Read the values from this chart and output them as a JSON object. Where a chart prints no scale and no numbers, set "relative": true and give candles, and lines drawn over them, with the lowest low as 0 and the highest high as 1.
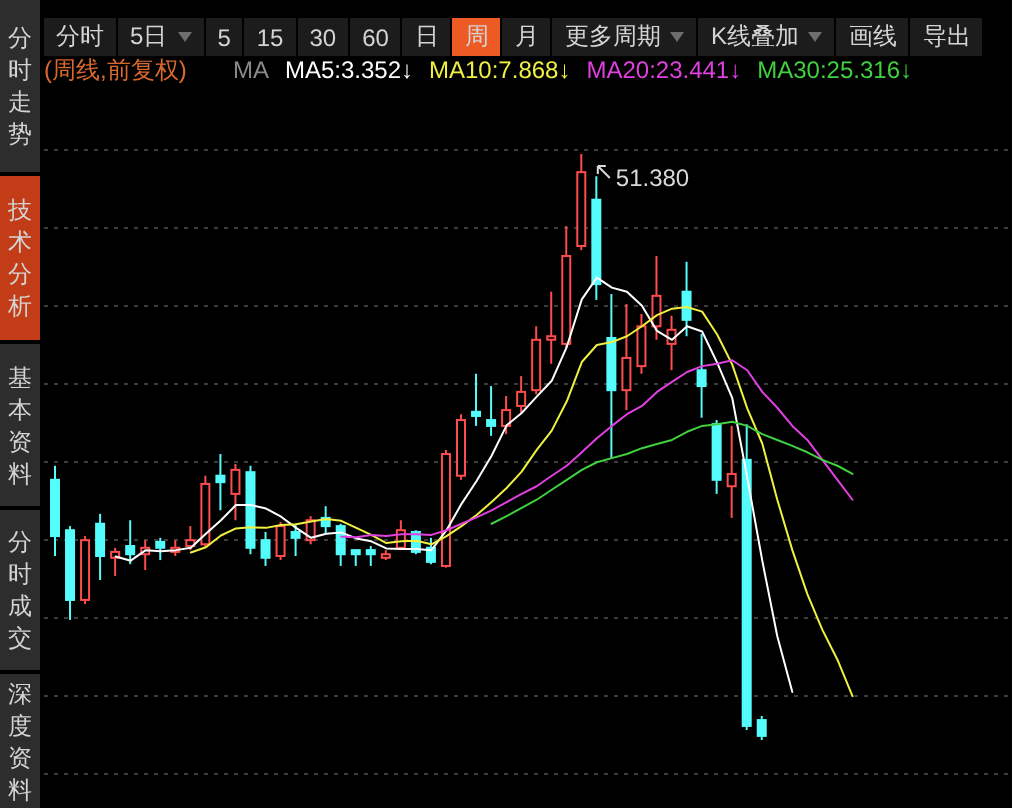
{
  "chart_data": [
    {
      "type": "other",
      "categories": [
        "分时走势",
        "技术分析",
        "基本资料",
        "分时成交",
        "深度资料"
      ],
      "colors": [
        "#2d2d2d",
        "#c33c18",
        "#2d2d2d",
        "#2d2d2d",
        "#2d2d2d"
      ]
    },
    {
      "type": "other",
      "categories": [
        "分时",
        "5日",
        "5",
        "15",
        "30",
        "60",
        "日",
        "周",
        "月",
        "更多周期",
        "K线叠加",
        "画线",
        "导出"
      ],
      "colors": [
        "#1c1c1c",
        "#1c1c1c",
        "#1c1c1c",
        "#1c1c1c",
        "#1c1c1c",
        "#1c1c1c",
        "#1c1c1c",
        "#ee5a24",
        "#1c1c1c",
        "#1c1c1c",
        "#1c1c1c",
        "#1c1c1c",
        "#1c1c1c"
      ]
    },
    {
      "type": "candlestick",
      "title": "(周线,前复权)",
      "legend_title": "MA",
      "relative": true,
      "legend": "top right",
      "grid": "y",
      "categories": [
        null,
        null,
        null,
        null,
        null,
        null,
        null,
        null,
        null,
        null,
        null,
        null,
        null,
        null,
        null,
        null,
        null,
        null,
        null,
        null,
        null,
        null,
        null,
        null,
        null,
        null,
        null,
        null,
        null,
        null,
        null,
        null,
        null,
        null,
        null,
        null,
        null,
        null,
        null,
        null,
        null,
        null,
        null,
        null,
        null,
        null,
        null,
        null,
        null,
        null,
        null,
        null,
        null,
        null
      ],
      "ohlc": [
        [
          0.444,
          0.468,
          0.314,
          0.348
        ],
        [
          0.358,
          0.365,
          0.205,
          0.239
        ],
        [
          0.239,
          0.348,
          0.232,
          0.341
        ],
        [
          0.369,
          0.386,
          0.273,
          0.314
        ],
        [
          0.311,
          0.328,
          0.28,
          0.321
        ],
        [
          0.331,
          0.375,
          0.3,
          0.317
        ],
        [
          0.317,
          0.341,
          0.29,
          0.328
        ],
        [
          0.338,
          0.345,
          0.307,
          0.328
        ],
        [
          0.321,
          0.341,
          0.314,
          0.328
        ],
        [
          0.331,
          0.365,
          0.324,
          0.341
        ],
        [
          0.334,
          0.451,
          0.328,
          0.437
        ],
        [
          0.451,
          0.488,
          0.392,
          0.44
        ],
        [
          0.42,
          0.471,
          0.375,
          0.461
        ],
        [
          0.457,
          0.468,
          0.317,
          0.328
        ],
        [
          0.341,
          0.355,
          0.297,
          0.311
        ],
        [
          0.314,
          0.372,
          0.307,
          0.365
        ],
        [
          0.355,
          0.369,
          0.314,
          0.345
        ],
        [
          0.341,
          0.382,
          0.334,
          0.375
        ],
        [
          0.379,
          0.399,
          0.352,
          0.365
        ],
        [
          0.365,
          0.369,
          0.297,
          0.317
        ],
        [
          0.324,
          0.324,
          0.297,
          0.317
        ],
        [
          0.324,
          0.331,
          0.297,
          0.317
        ],
        [
          0.311,
          0.324,
          0.307,
          0.317
        ],
        [
          0.328,
          0.375,
          0.324,
          0.358
        ],
        [
          0.355,
          0.358,
          0.317,
          0.321
        ],
        [
          0.328,
          0.345,
          0.3,
          0.304
        ],
        [
          0.297,
          0.495,
          0.294,
          0.488
        ],
        [
          0.451,
          0.556,
          0.444,
          0.546
        ],
        [
          0.56,
          0.625,
          0.536,
          0.553
        ],
        [
          0.546,
          0.604,
          0.519,
          0.536
        ],
        [
          0.536,
          0.587,
          0.522,
          0.563
        ],
        [
          0.57,
          0.621,
          0.556,
          0.594
        ],
        [
          0.597,
          0.706,
          0.59,
          0.683
        ],
        [
          0.683,
          0.765,
          0.642,
          0.689
        ],
        [
          0.676,
          0.877,
          0.669,
          0.826
        ],
        [
          0.843,
          1,
          0.836,
          0.969
        ],
        [
          0.922,
          0.962,
          0.751,
          0.778
        ],
        [
          0.686,
          0.761,
          0.481,
          0.597
        ],
        [
          0.597,
          0.744,
          0.563,
          0.652
        ],
        [
          0.638,
          0.727,
          0.625,
          0.706
        ],
        [
          0.706,
          0.826,
          0.683,
          0.758
        ],
        [
          0.676,
          0.724,
          0.631,
          0.7
        ],
        [
          0.765,
          0.816,
          0.689,
          0.717
        ],
        [
          0.631,
          0.693,
          0.55,
          0.604
        ],
        [
          0.539,
          0.546,
          0.42,
          0.444
        ],
        [
          0.433,
          0.536,
          0.379,
          0.454
        ],
        [
          0.478,
          0.539,
          0.017,
          0.024
        ],
        [
          0.034,
          0.041,
          0,
          0.007
        ],
        null,
        null,
        null,
        null,
        null,
        null
      ],
      "colors": [
        "#54fcfc",
        "#54fcfc",
        "#ff4c4c",
        "#54fcfc",
        "#ff4c4c",
        "#54fcfc",
        "#ff4c4c",
        "#54fcfc",
        "#ff4c4c",
        "#ff4c4c",
        "#ff4c4c",
        "#54fcfc",
        "#ff4c4c",
        "#54fcfc",
        "#54fcfc",
        "#ff4c4c",
        "#54fcfc",
        "#ff4c4c",
        "#54fcfc",
        "#54fcfc",
        "#54fcfc",
        "#54fcfc",
        "#ff4c4c",
        "#ff4c4c",
        "#54fcfc",
        "#54fcfc",
        "#ff4c4c",
        "#ff4c4c",
        "#54fcfc",
        "#54fcfc",
        "#ff4c4c",
        "#ff4c4c",
        "#ff4c4c",
        "#ff4c4c",
        "#ff4c4c",
        "#ff4c4c",
        "#54fcfc",
        "#54fcfc",
        "#ff4c4c",
        "#ff4c4c",
        "#ff4c4c",
        "#ff4c4c",
        "#54fcfc",
        "#54fcfc",
        "#54fcfc",
        "#ff4c4c",
        "#54fcfc",
        "#54fcfc",
        null,
        null,
        null,
        null,
        null,
        null
      ],
      "series": [
        {
          "name": "MA5:3.352↓",
          "type": "line",
          "color": "#ffffff",
          "values": [
            null,
            null,
            null,
            null,
            0.313,
            0.306,
            0.324,
            0.322,
            0.324,
            0.328,
            0.352,
            0.375,
            0.401,
            0.401,
            0.395,
            0.381,
            0.362,
            0.345,
            0.352,
            0.354,
            0.344,
            0.339,
            0.327,
            0.326,
            0.326,
            0.324,
            0.358,
            0.403,
            0.442,
            0.485,
            0.537,
            0.558,
            0.586,
            0.613,
            0.671,
            0.752,
            0.789,
            0.772,
            0.765,
            0.741,
            0.698,
            0.683,
            0.706,
            0.697,
            0.644,
            0.584,
            0.448,
            0.306,
            0.177,
            0.082,
            null,
            null,
            null,
            null
          ]
        },
        {
          "name": "MA10:7.868↓",
          "type": "line",
          "color": "#f0f040",
          "values": [
            null,
            null,
            null,
            null,
            null,
            null,
            null,
            null,
            null,
            0.32,
            0.329,
            0.349,
            0.361,
            0.363,
            0.362,
            0.367,
            0.368,
            0.373,
            0.377,
            0.374,
            0.362,
            0.35,
            0.336,
            0.339,
            0.34,
            0.334,
            0.348,
            0.365,
            0.384,
            0.406,
            0.43,
            0.458,
            0.495,
            0.528,
            0.578,
            0.645,
            0.674,
            0.679,
            0.689,
            0.706,
            0.725,
            0.736,
            0.739,
            0.731,
            0.692,
            0.641,
            0.566,
            0.506,
            0.41,
            0.324,
            0.249,
            0.188,
            0.137,
            0.075
          ]
        },
        {
          "name": "MA20:23.441↓",
          "type": "line",
          "color": "#e040e0",
          "values": [
            null,
            null,
            null,
            null,
            null,
            null,
            null,
            null,
            null,
            null,
            null,
            null,
            null,
            null,
            null,
            null,
            null,
            null,
            null,
            0.347,
            0.346,
            0.35,
            0.348,
            0.351,
            0.351,
            0.35,
            0.358,
            0.369,
            0.38,
            0.392,
            0.406,
            0.42,
            0.433,
            0.451,
            0.468,
            0.491,
            0.515,
            0.536,
            0.556,
            0.57,
            0.594,
            0.611,
            0.628,
            0.638,
            0.642,
            0.648,
            0.631,
            0.594,
            0.567,
            0.536,
            0.512,
            0.478,
            0.444,
            0.41
          ]
        },
        {
          "name": "MA30:25.316↓",
          "type": "line",
          "color": "#40d040",
          "values": [
            null,
            null,
            null,
            null,
            null,
            null,
            null,
            null,
            null,
            null,
            null,
            null,
            null,
            null,
            null,
            null,
            null,
            null,
            null,
            null,
            null,
            null,
            null,
            null,
            null,
            null,
            null,
            null,
            null,
            0.369,
            0.382,
            0.396,
            0.41,
            0.427,
            0.444,
            0.461,
            0.474,
            0.481,
            0.488,
            0.498,
            0.505,
            0.512,
            0.526,
            0.536,
            0.539,
            0.543,
            0.536,
            0.522,
            0.512,
            0.502,
            0.491,
            0.478,
            0.468,
            0.454
          ]
        }
      ],
      "annotations": [
        "51.380"
      ]
    }
  ]
}
